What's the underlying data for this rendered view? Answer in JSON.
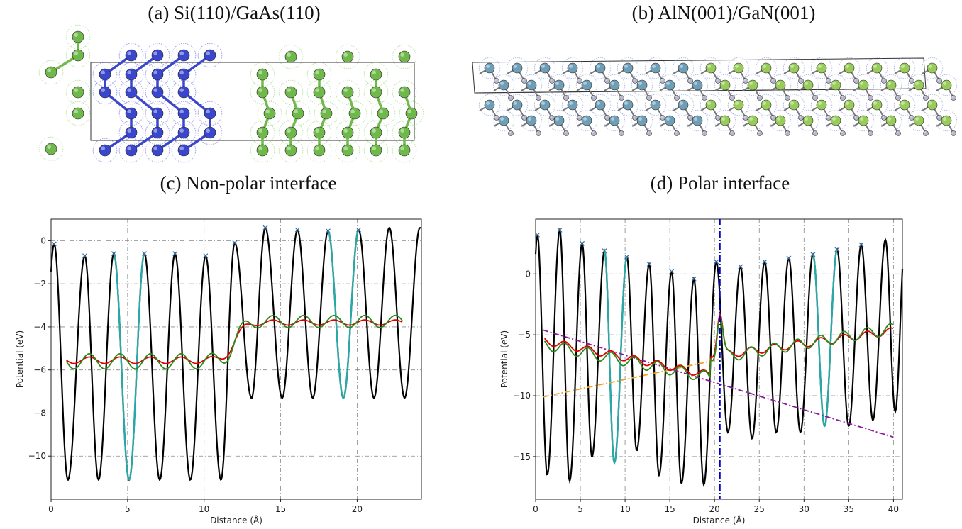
{
  "titles": {
    "a": "(a) Si(110)/GaAs(110)",
    "b": "(b) AlN(001)/GaN(001)",
    "c": "(c) Non-polar interface",
    "d": "(d) Polar interface"
  },
  "colors": {
    "si_atom": "#3a47cc",
    "gaas_atom": "#6fb84a",
    "al_atom": "#6f9fb8",
    "ga_atom": "#98cc5a",
    "n_atom": "#b8b8cc",
    "potential": "#000000",
    "highlight": "#2aa8a8",
    "macro_avg_1": "#e00000",
    "macro_avg_2": "#2a8a1a",
    "fit_left": "#8b1a9b",
    "fit_right": "#f0a020",
    "interface_line": "#0000cc",
    "markers": "#3a6f9f"
  },
  "structures": {
    "a": {
      "left_material": "Si",
      "right_material": "GaAs"
    },
    "b": {
      "left_material": "AlN",
      "right_material": "GaN"
    }
  },
  "chart_data": [
    {
      "id": "c",
      "type": "line",
      "title": "(c) Non-polar interface",
      "xlabel": "Distance (Å)",
      "ylabel": "Potential (eV)",
      "xlim": [
        0,
        24.2
      ],
      "ylim": [
        -12,
        1
      ],
      "xticks": [
        0,
        5,
        10,
        15,
        20
      ],
      "yticks": [
        0,
        -2,
        -4,
        -6,
        -8,
        -10
      ],
      "grid": true,
      "period": 2.0,
      "potential_maxima": [
        [
          0.2,
          -0.15
        ],
        [
          2.2,
          -0.7
        ],
        [
          4.1,
          -0.6
        ],
        [
          6.1,
          -0.6
        ],
        [
          8.1,
          -0.6
        ],
        [
          10.1,
          -0.7
        ],
        [
          12.0,
          -0.1
        ],
        [
          14.0,
          0.6
        ],
        [
          16.1,
          0.5
        ],
        [
          18.1,
          0.45
        ],
        [
          20.1,
          0.5
        ],
        [
          22.1,
          0.6
        ]
      ],
      "potential_minima": [
        [
          1.1,
          -11.1
        ],
        [
          3.1,
          -11.1
        ],
        [
          5.1,
          -11.1
        ],
        [
          7.1,
          -11.1
        ],
        [
          9.1,
          -11.1
        ],
        [
          11.1,
          -11.1
        ],
        [
          13.1,
          -7.3
        ],
        [
          15.1,
          -7.3
        ],
        [
          17.1,
          -7.3
        ],
        [
          19.1,
          -7.3
        ],
        [
          21.1,
          -7.3
        ],
        [
          23.1,
          -7.3
        ]
      ],
      "highlighted_periods": [
        [
          4.1,
          6.1
        ],
        [
          18.1,
          20.1
        ]
      ],
      "marker_x": [
        0.2,
        2.2,
        4.1,
        6.1,
        8.1,
        10.1,
        12.0,
        14.0,
        16.1,
        18.1,
        20.1
      ],
      "macro_avg_red": {
        "x_range": [
          1.0,
          23.0
        ],
        "left_level": -5.55,
        "right_level": -3.8,
        "step_at": 12.0,
        "ripple": 0.15
      },
      "macro_avg_green": {
        "x_range": [
          1.0,
          23.0
        ],
        "left_level": -5.6,
        "right_level": -3.75,
        "step_at": 12.0,
        "ripple": 0.35
      }
    },
    {
      "id": "d",
      "type": "line",
      "title": "(d) Polar interface",
      "xlabel": "Distance (Å)",
      "ylabel": "Potential (eV)",
      "xlim": [
        0,
        41
      ],
      "ylim": [
        -18.5,
        4.5
      ],
      "xticks": [
        0,
        5,
        10,
        15,
        20,
        25,
        30,
        35,
        40
      ],
      "yticks": [
        0,
        -5,
        -10,
        -15
      ],
      "grid": true,
      "interface_x": 20.6,
      "potential_maxima": [
        [
          0.2,
          3.2
        ],
        [
          2.7,
          3.6
        ],
        [
          5.2,
          2.5
        ],
        [
          7.7,
          1.9
        ],
        [
          10.2,
          1.4
        ],
        [
          12.7,
          0.8
        ],
        [
          15.2,
          0.2
        ],
        [
          17.7,
          -0.4
        ],
        [
          20.2,
          1.0
        ],
        [
          22.9,
          0.6
        ],
        [
          25.6,
          1.0
        ],
        [
          28.3,
          1.3
        ],
        [
          31.0,
          1.6
        ],
        [
          33.7,
          2.0
        ],
        [
          36.4,
          2.4
        ],
        [
          39.1,
          2.8
        ]
      ],
      "potential_minima": [
        [
          1.3,
          -16.5
        ],
        [
          3.8,
          -17.0
        ],
        [
          6.3,
          -15.0
        ],
        [
          8.8,
          -15.5
        ],
        [
          11.3,
          -14.5
        ],
        [
          13.8,
          -16.5
        ],
        [
          16.3,
          -17.2
        ],
        [
          18.8,
          -17.3
        ],
        [
          21.5,
          -13.0
        ],
        [
          24.2,
          -13.5
        ],
        [
          26.9,
          -13.0
        ],
        [
          29.6,
          -13.0
        ],
        [
          32.3,
          -12.5
        ],
        [
          35.0,
          -12.5
        ],
        [
          37.7,
          -12.0
        ],
        [
          40.2,
          -11.3
        ]
      ],
      "highlighted_periods": [
        [
          7.7,
          10.2
        ],
        [
          31.0,
          33.7
        ]
      ],
      "marker_x": [
        0.2,
        2.7,
        5.2,
        7.7,
        10.2,
        12.7,
        15.2,
        17.7,
        20.2,
        22.9,
        25.6,
        28.3,
        31.0,
        33.7,
        36.4
      ],
      "fit_left_purple": {
        "x": [
          0.8,
          40.0
        ],
        "y": [
          -4.6,
          -13.4
        ]
      },
      "fit_right_orange": {
        "x": [
          0.8,
          20.6
        ],
        "y": [
          -10.1,
          -7.0
        ]
      },
      "macro_avg_red": {
        "x_start": 1.0,
        "x_end": 40.0,
        "y_start": -5.5,
        "y_mid": -8.3,
        "y_end": -4.7
      },
      "macro_avg_green": {
        "x_start": 1.0,
        "x_end": 40.0,
        "y_start": -5.8,
        "y_mid": -8.5,
        "y_end": -4.5
      }
    }
  ]
}
